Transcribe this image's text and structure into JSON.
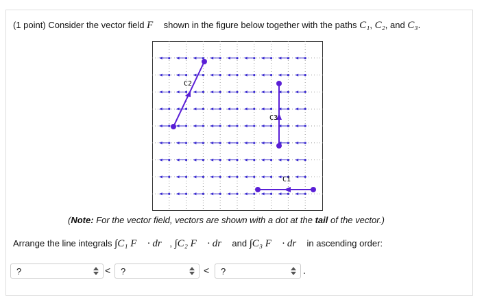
{
  "header": {
    "points": "(1 point)",
    "intro": "Consider the vector field",
    "field": "F⃗",
    "middle": "shown in the figure below together with the paths",
    "paths": [
      "C₁",
      "C₂",
      "C₃"
    ],
    "sep": [
      ",",
      ", and",
      "."
    ]
  },
  "figure": {
    "labels": [
      "C1",
      "C2",
      "C3"
    ]
  },
  "note": {
    "open": "(",
    "bold1": "Note:",
    "text1": "For the vector field, vectors are shown with a dot at the",
    "bold2": "tail",
    "text2": "of the vector.)"
  },
  "question": {
    "intro": "Arrange the line integrals",
    "integrals": [
      "∫C₁ F⃗ · dr⃗",
      "∫C₂ F⃗ · dr⃗",
      "∫C₃ F⃗ · dr⃗"
    ],
    "sep": [
      ",",
      "and"
    ],
    "outro": "in ascending order:"
  },
  "answer": {
    "placeholders": [
      "?",
      "?",
      "?"
    ],
    "operators": [
      "<",
      "<"
    ],
    "end": "."
  }
}
